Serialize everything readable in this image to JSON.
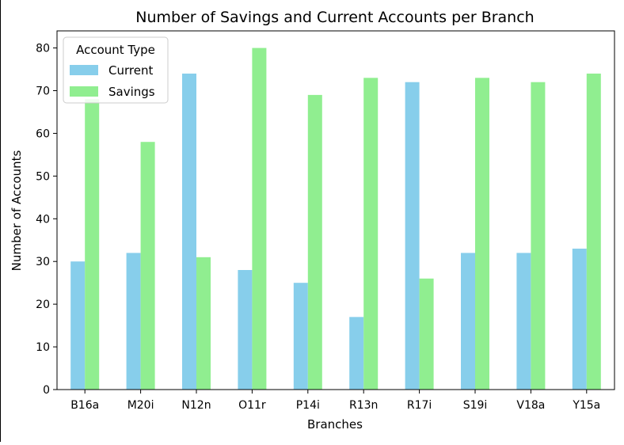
{
  "chart_data": {
    "type": "bar",
    "title": "Number of Savings and Current Accounts per Branch",
    "xlabel": "Branches",
    "ylabel": "Number of Accounts",
    "categories": [
      "B16a",
      "M20i",
      "N12n",
      "O11r",
      "P14i",
      "R13n",
      "R17i",
      "S19i",
      "V18a",
      "Y15a"
    ],
    "series": [
      {
        "name": "Current",
        "color": "#87ceeb",
        "values": [
          30,
          32,
          74,
          28,
          25,
          17,
          72,
          32,
          32,
          33
        ]
      },
      {
        "name": "Savings",
        "color": "#90ee90",
        "values": [
          68,
          58,
          31,
          80,
          69,
          73,
          26,
          73,
          72,
          74
        ]
      }
    ],
    "ylim": [
      0,
      84
    ],
    "yticks": [
      0,
      10,
      20,
      30,
      40,
      50,
      60,
      70,
      80
    ],
    "grid": false,
    "legend": {
      "title": "Account Type",
      "placement": "upper-left"
    }
  }
}
